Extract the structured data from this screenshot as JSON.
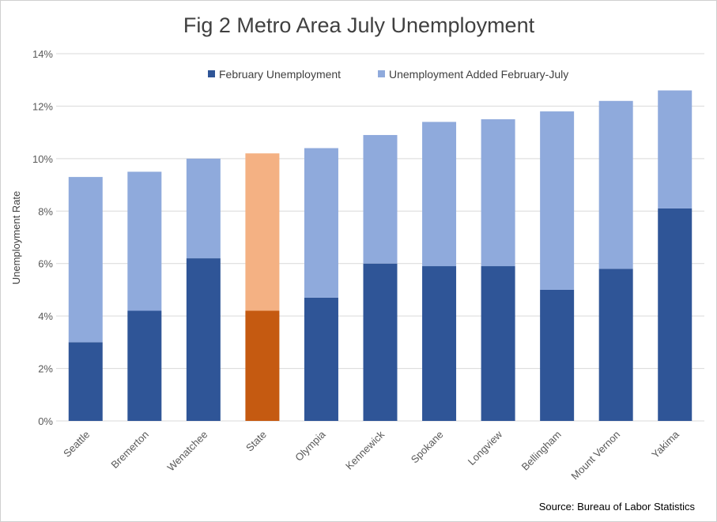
{
  "chart_data": {
    "type": "bar",
    "stacked": true,
    "title": "Fig 2 Metro Area July Unemployment",
    "xlabel": "",
    "ylabel": "Unemployment Rate",
    "ylim": [
      0,
      14
    ],
    "y_ticks": [
      "0%",
      "2%",
      "4%",
      "6%",
      "8%",
      "10%",
      "12%",
      "14%"
    ],
    "y_tick_values": [
      0,
      2,
      4,
      6,
      8,
      10,
      12,
      14
    ],
    "grid": true,
    "legend_position": "top",
    "categories": [
      "Seattle",
      "Bremerton",
      "Wenatchee",
      "State",
      "Olympia",
      "Kennewick",
      "Spokane",
      "Longview",
      "Bellingham",
      "Mount Vernon",
      "Yakima"
    ],
    "series": [
      {
        "name": "February Unemployment",
        "color": "#2f5597",
        "values": [
          3.0,
          4.2,
          6.2,
          4.2,
          4.7,
          6.0,
          5.9,
          5.9,
          5.0,
          5.8,
          8.1
        ]
      },
      {
        "name": "Unemployment Added February-July",
        "color": "#8faadc",
        "values": [
          6.3,
          5.3,
          3.8,
          6.0,
          5.7,
          4.9,
          5.5,
          5.6,
          6.8,
          6.4,
          4.5
        ]
      }
    ],
    "highlight": {
      "category": "State",
      "colors": [
        "#c55a11",
        "#f4b183"
      ]
    },
    "annotation": "Source: Bureau of Labor Statistics"
  }
}
